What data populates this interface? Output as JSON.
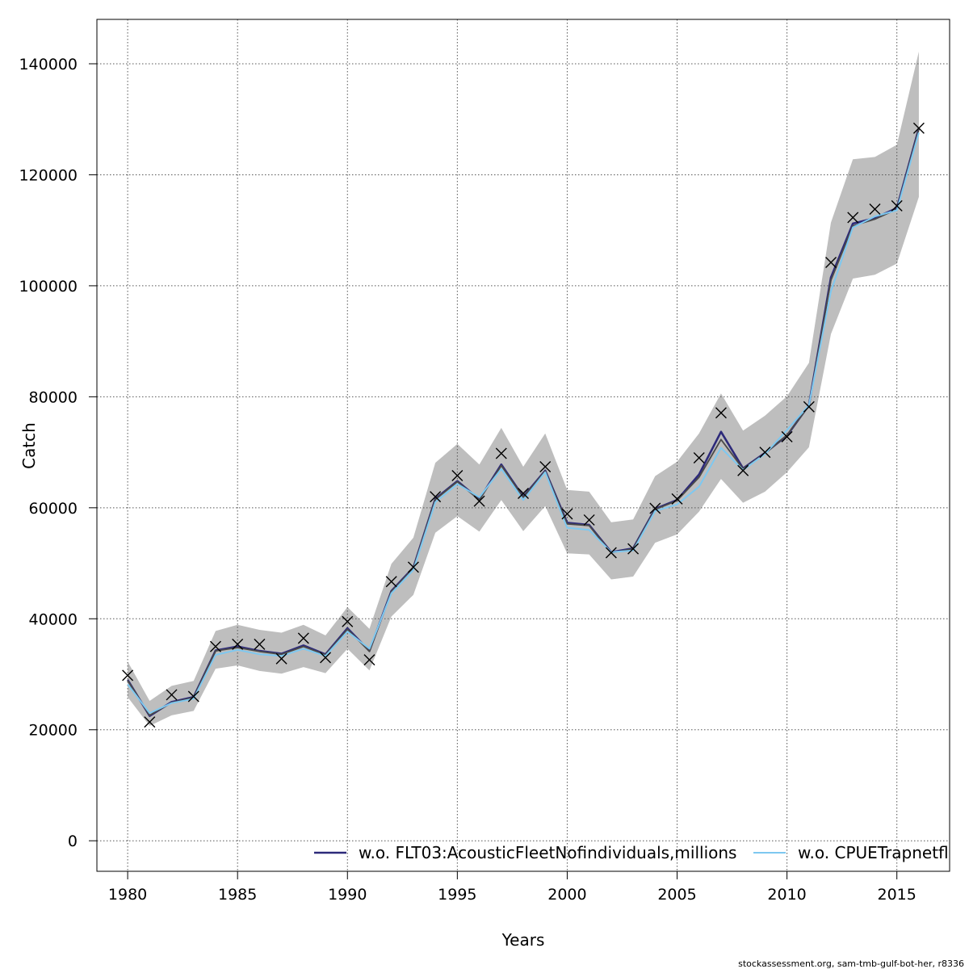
{
  "chart_data": {
    "type": "line",
    "title": "",
    "xlabel": "Years",
    "ylabel": "Catch",
    "xlim": [
      1978.6,
      2017.4
    ],
    "ylim": [
      -5500,
      148000
    ],
    "grid": true,
    "x_ticks": [
      1980,
      1985,
      1990,
      1995,
      2000,
      2005,
      2010,
      2015
    ],
    "y_ticks": [
      0,
      20000,
      40000,
      60000,
      80000,
      100000,
      120000,
      140000
    ],
    "x_tick_labels": [
      "1980",
      "1985",
      "1990",
      "1995",
      "2000",
      "2005",
      "2010",
      "2015"
    ],
    "y_tick_labels": [
      "0",
      "20000",
      "40000",
      "60000",
      "80000",
      "100000",
      "120000",
      "140000"
    ],
    "legend_position": "bottom-right",
    "years": [
      1980,
      1981,
      1982,
      1983,
      1984,
      1985,
      1986,
      1987,
      1988,
      1989,
      1990,
      1991,
      1992,
      1993,
      1994,
      1995,
      1996,
      1997,
      1998,
      1999,
      2000,
      2001,
      2002,
      2003,
      2004,
      2005,
      2006,
      2007,
      2008,
      2009,
      2010,
      2011,
      2012,
      2013,
      2014,
      2015,
      2016
    ],
    "observed": [
      29800,
      21400,
      26300,
      26000,
      35000,
      35400,
      35400,
      32800,
      36500,
      33000,
      39500,
      32600,
      46700,
      49300,
      62000,
      65800,
      61200,
      69800,
      62600,
      67400,
      58900,
      57800,
      51900,
      52600,
      59900,
      61600,
      69000,
      77100,
      66700,
      70000,
      72800,
      78200,
      104200,
      112300,
      113800,
      114400,
      128400
    ],
    "ci_upper": [
      32300,
      25200,
      27900,
      28800,
      37800,
      38900,
      38000,
      37500,
      38900,
      37000,
      42100,
      38200,
      49900,
      54600,
      68100,
      71500,
      67800,
      74400,
      67400,
      73400,
      63200,
      62900,
      57400,
      57900,
      65700,
      68300,
      73400,
      80600,
      73900,
      76600,
      80100,
      86100,
      111400,
      122800,
      123200,
      125400,
      142200
    ],
    "ci_lower": [
      25900,
      20700,
      22600,
      23400,
      31000,
      31600,
      30600,
      30100,
      31300,
      30200,
      34600,
      30700,
      40400,
      44300,
      55500,
      58500,
      55700,
      61400,
      55800,
      60300,
      51800,
      51600,
      47100,
      47600,
      53700,
      55200,
      59300,
      65200,
      60900,
      62900,
      66400,
      70900,
      91300,
      101300,
      102000,
      104000,
      116000
    ],
    "series": [
      {
        "name": "w.o. FLT03:AcousticFleetNofindividuals,millions",
        "color": "#2d2a7a",
        "width": 2.6,
        "values": [
          29000,
          22500,
          25000,
          25900,
          34300,
          35000,
          34200,
          33700,
          35200,
          33600,
          38300,
          34200,
          45000,
          49200,
          61600,
          64800,
          61500,
          67800,
          62000,
          66700,
          57300,
          56900,
          52000,
          52700,
          59800,
          61400,
          66000,
          73700,
          67100,
          69900,
          73000,
          78500,
          101500,
          111200,
          112200,
          114000,
          128400
        ]
      },
      {
        "name": "",
        "color": "#4a4a4a",
        "width": 1.8,
        "values": [
          28900,
          22600,
          24900,
          25800,
          34200,
          34800,
          34100,
          33600,
          35000,
          33500,
          38100,
          34100,
          44900,
          49100,
          61500,
          64700,
          61400,
          67600,
          61900,
          66600,
          57100,
          56800,
          51900,
          52600,
          59700,
          61300,
          65500,
          72300,
          67000,
          69800,
          73100,
          78400,
          101000,
          110800,
          112000,
          113800,
          128200
        ]
      },
      {
        "name": "w.o. CPUETrapnetfle",
        "color": "#7ec8f0",
        "width": 2.0,
        "values": [
          28200,
          23000,
          24800,
          25600,
          33500,
          34400,
          33600,
          33300,
          34600,
          33300,
          37700,
          34600,
          44600,
          48800,
          61000,
          64300,
          61900,
          67000,
          61400,
          66400,
          56400,
          56000,
          52000,
          52300,
          59400,
          60600,
          63800,
          70800,
          66800,
          69700,
          74000,
          78500,
          99000,
          110500,
          112500,
          113600,
          127600
        ]
      }
    ]
  },
  "credit": "stockassessment.org, sam-tmb-gulf-bot-her, r8336"
}
